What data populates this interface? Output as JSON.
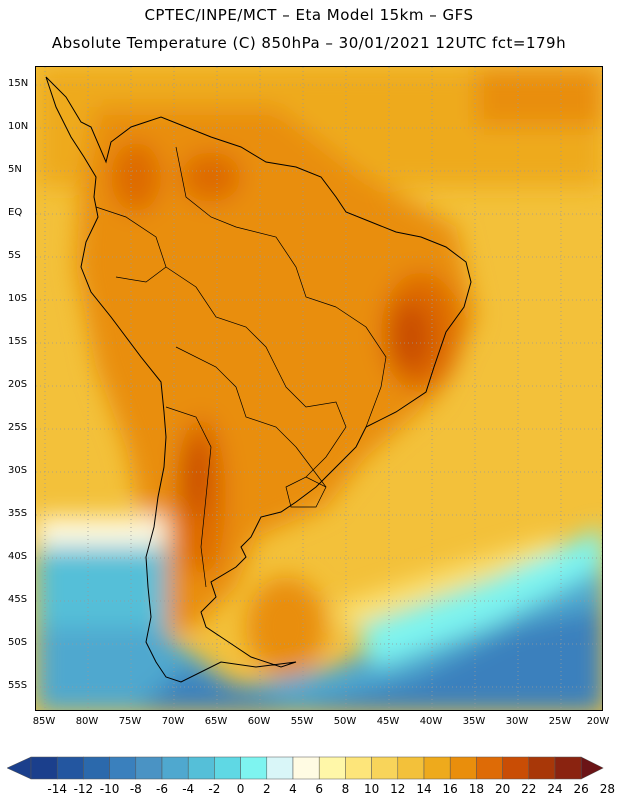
{
  "header": {
    "line1": "CPTEC/INPE/MCT –  Eta Model 15km – GFS",
    "line2": "Absolute Temperature (C) 850hPa – 30/01/2021 12UTC fct=179h"
  },
  "axes": {
    "lat_labels": [
      "15N",
      "10N",
      "5N",
      "EQ",
      "5S",
      "10S",
      "15S",
      "20S",
      "25S",
      "30S",
      "35S",
      "40S",
      "45S",
      "50S",
      "55S"
    ],
    "lon_labels": [
      "85W",
      "80W",
      "75W",
      "70W",
      "65W",
      "60W",
      "55W",
      "50W",
      "45W",
      "40W",
      "35W",
      "30W",
      "25W",
      "20W"
    ]
  },
  "legend": {
    "labels": [
      "-14",
      "-12",
      "-10",
      "-8",
      "-6",
      "-4",
      "-2",
      "0",
      "2",
      "4",
      "6",
      "8",
      "10",
      "12",
      "14",
      "16",
      "18",
      "20",
      "22",
      "24",
      "26",
      "28"
    ],
    "colors": [
      "#1b3f8c",
      "#2356a0",
      "#2b69ac",
      "#3a80bd",
      "#4a93c4",
      "#4fa8cf",
      "#55bfd8",
      "#5fd8e4",
      "#7ef4f0",
      "#d9f6f8",
      "#fffbe3",
      "#fff7a8",
      "#fde57a",
      "#f8d45a",
      "#f3c13a",
      "#eeaa1c",
      "#e98e0c",
      "#de6b06",
      "#c94d05",
      "#a83708",
      "#8a2310",
      "#6b1416"
    ],
    "colors_note": "endpoint arrows use first and last colors"
  }
}
